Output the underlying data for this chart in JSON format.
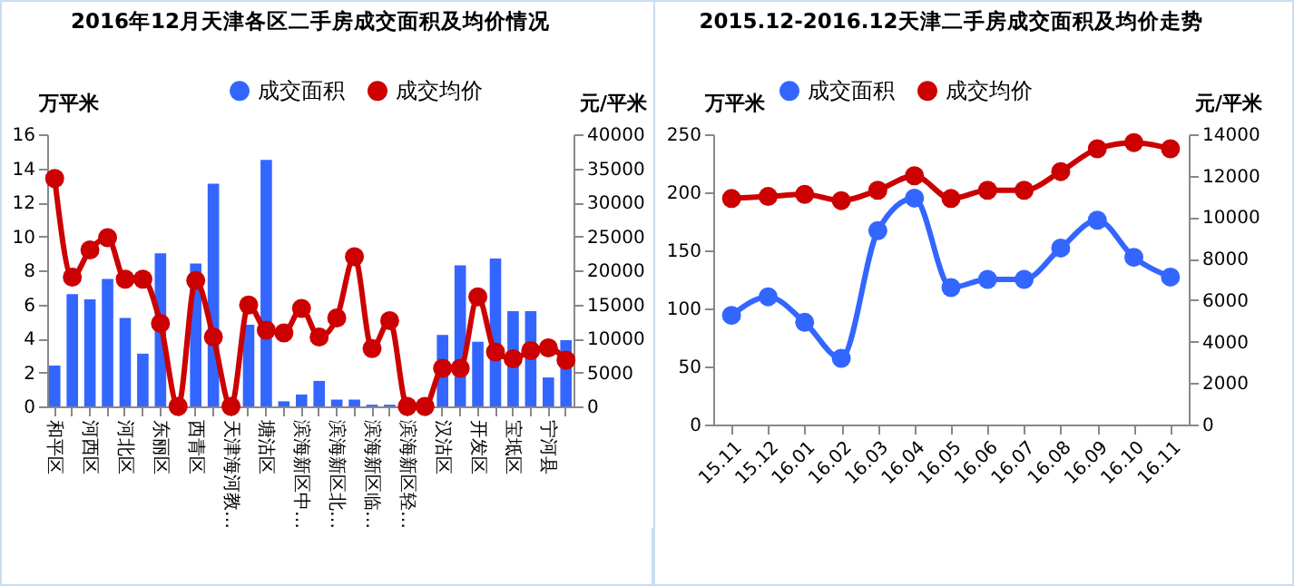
{
  "chart_data": [
    {
      "type": "bar",
      "title": "2016年12月天津各区二手房成交面积及均价情况",
      "ylabel": "万平米",
      "y2label": "元/平米",
      "categories": [
        "和平区",
        null,
        "河西区",
        null,
        "河北区",
        null,
        "东丽区",
        null,
        "西青区",
        null,
        "天津海河教…",
        null,
        "塘沽区",
        null,
        "滨海新区中…",
        null,
        "滨海新区北…",
        null,
        "滨海新区临…",
        null,
        "滨海新区轻…",
        null,
        "汉沽区",
        null,
        "开发区",
        null,
        "宝坻区",
        null,
        "宁河县",
        null
      ],
      "series": [
        {
          "name": "成交面积",
          "color": "#3366ff",
          "values": [
            2.4,
            6.6,
            6.3,
            7.5,
            5.2,
            3.1,
            9.0,
            0,
            8.4,
            13.1,
            0,
            4.8,
            14.5,
            0.3,
            0.7,
            1.5,
            0.4,
            0.4,
            0.1,
            0.1,
            0,
            0,
            4.2,
            8.3,
            3.8,
            8.7,
            5.6,
            5.6,
            1.7,
            3.9
          ]
        },
        {
          "name": "成交均价",
          "type": "line",
          "axis": "y2",
          "color": "#cc0000",
          "values": [
            33500,
            19000,
            23000,
            24800,
            18700,
            18700,
            12200,
            0,
            18500,
            10200,
            0,
            14900,
            11200,
            10800,
            14400,
            10200,
            13000,
            22000,
            8500,
            12600,
            0,
            0,
            5600,
            5600,
            16100,
            8000,
            7000,
            8200,
            8600,
            6800
          ]
        }
      ],
      "ylim": [
        0,
        16
      ],
      "yticks": [
        0,
        2,
        4,
        6,
        8,
        10,
        12,
        14,
        16
      ],
      "y2lim": [
        0,
        40000
      ],
      "y2ticks": [
        0,
        5000,
        10000,
        15000,
        20000,
        25000,
        30000,
        35000,
        40000
      ],
      "legend": "top right",
      "marker": "circle",
      "grid": false
    },
    {
      "type": "line",
      "title": "2015.12-2016.12天津二手房成交面积及均价走势",
      "ylabel": "万平米",
      "y2label": "元/平米",
      "categories": [
        "15.11",
        "15.12",
        "16.01",
        "16.02",
        "16.03",
        "16.04",
        "16.05",
        "16.06",
        "16.07",
        "16.08",
        "16.09",
        "16.10",
        "16.11"
      ],
      "series": [
        {
          "name": "成交面积",
          "color": "#3366ff",
          "values": [
            94,
            110,
            88,
            57,
            167,
            195,
            118,
            125,
            125,
            152,
            176,
            144,
            127
          ]
        },
        {
          "name": "成交均价",
          "axis": "y2",
          "color": "#cc0000",
          "values": [
            10900,
            11000,
            11100,
            10800,
            11300,
            12000,
            10900,
            11300,
            11300,
            12200,
            13300,
            13600,
            13300
          ]
        }
      ],
      "ylim": [
        0,
        250
      ],
      "yticks": [
        0,
        50,
        100,
        150,
        200,
        250
      ],
      "y2lim": [
        0,
        14000
      ],
      "y2ticks": [
        0,
        2000,
        4000,
        6000,
        8000,
        10000,
        12000,
        14000
      ],
      "legend": "top",
      "marker": "circle",
      "grid": false
    }
  ]
}
